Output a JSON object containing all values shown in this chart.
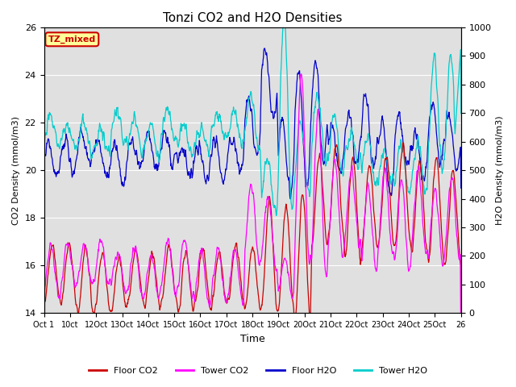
{
  "title": "Tonzi CO2 and H2O Densities",
  "xlabel": "Time",
  "ylabel_left": "CO2 Density (mmol/m3)",
  "ylabel_right": "H2O Density (mmol/m3)",
  "ylim_left": [
    14,
    26
  ],
  "ylim_right": [
    0,
    1000
  ],
  "xtick_labels": [
    "Oct 1",
    "10ct",
    "12Oct",
    "13Oct",
    "14Oct",
    "15Oct",
    "16Oct",
    "17Oct",
    "18Oct",
    "19Oct",
    "20Oct",
    "21Oct",
    "22Oct",
    "23Oct",
    "24Oct",
    "25Oct",
    "26"
  ],
  "annotation_text": "TZ_mixed",
  "annotation_fg": "#cc0000",
  "annotation_bg": "#ffff99",
  "plot_bg": "#e0e0e0",
  "colors": {
    "floor_co2": "#cc0000",
    "tower_co2": "#ff00ff",
    "floor_h2o": "#0000cc",
    "tower_h2o": "#00cccc"
  },
  "legend_labels": [
    "Floor CO2",
    "Tower CO2",
    "Floor H2O",
    "Tower H2O"
  ]
}
